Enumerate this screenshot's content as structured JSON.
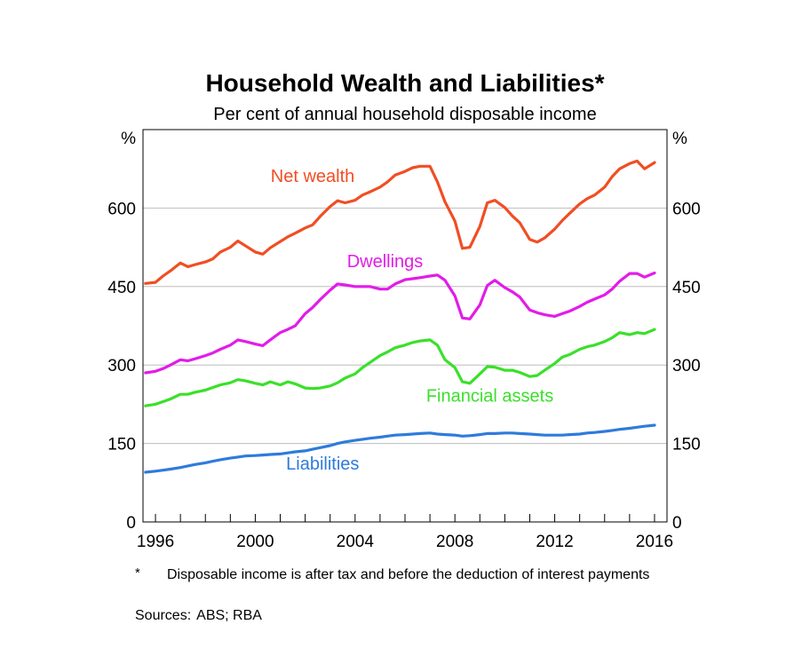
{
  "chart_data": {
    "type": "line",
    "title": "Household Wealth and Liabilities*",
    "subtitle": "Per cent of annual household disposable income",
    "y_unit": "%",
    "ylim": [
      0,
      750
    ],
    "yticks": [
      0,
      150,
      300,
      450,
      600
    ],
    "xlim": [
      1995.5,
      2016.5
    ],
    "xticks": [
      1996,
      2000,
      2004,
      2008,
      2012,
      2016
    ],
    "grid": true,
    "series": [
      {
        "name": "Net wealth",
        "color": "#f04e23",
        "x": [
          1995.6,
          1996.0,
          1996.3,
          1996.6,
          1997.0,
          1997.3,
          1997.6,
          1998.0,
          1998.3,
          1998.6,
          1999.0,
          1999.3,
          1999.6,
          2000.0,
          2000.3,
          2000.6,
          2001.0,
          2001.3,
          2001.6,
          2002.0,
          2002.3,
          2002.6,
          2003.0,
          2003.3,
          2003.6,
          2004.0,
          2004.3,
          2004.6,
          2005.0,
          2005.3,
          2005.6,
          2006.0,
          2006.3,
          2006.6,
          2007.0,
          2007.3,
          2007.6,
          2008.0,
          2008.3,
          2008.6,
          2009.0,
          2009.3,
          2009.6,
          2010.0,
          2010.3,
          2010.6,
          2011.0,
          2011.3,
          2011.6,
          2012.0,
          2012.3,
          2012.6,
          2013.0,
          2013.3,
          2013.6,
          2014.0,
          2014.3,
          2014.6,
          2015.0,
          2015.3,
          2015.6,
          2016.0
        ],
        "values": [
          456,
          458,
          470,
          480,
          495,
          488,
          492,
          497,
          503,
          516,
          525,
          537,
          528,
          516,
          512,
          524,
          536,
          545,
          552,
          562,
          568,
          584,
          603,
          614,
          610,
          615,
          625,
          631,
          640,
          650,
          663,
          670,
          677,
          680,
          680,
          650,
          612,
          575,
          523,
          525,
          565,
          610,
          615,
          601,
          585,
          572,
          540,
          535,
          543,
          560,
          576,
          590,
          608,
          618,
          625,
          640,
          660,
          675,
          685,
          690,
          675,
          687
        ]
      },
      {
        "name": "Dwellings",
        "color": "#e21ce8",
        "x": [
          1995.6,
          1996.0,
          1996.3,
          1996.6,
          1997.0,
          1997.3,
          1997.6,
          1998.0,
          1998.3,
          1998.6,
          1999.0,
          1999.3,
          1999.6,
          2000.0,
          2000.3,
          2000.6,
          2001.0,
          2001.3,
          2001.6,
          2002.0,
          2002.3,
          2002.6,
          2003.0,
          2003.3,
          2003.6,
          2004.0,
          2004.3,
          2004.6,
          2005.0,
          2005.3,
          2005.6,
          2006.0,
          2006.3,
          2006.6,
          2007.0,
          2007.3,
          2007.6,
          2008.0,
          2008.3,
          2008.6,
          2009.0,
          2009.3,
          2009.6,
          2010.0,
          2010.3,
          2010.6,
          2011.0,
          2011.3,
          2011.6,
          2012.0,
          2012.3,
          2012.6,
          2013.0,
          2013.3,
          2013.6,
          2014.0,
          2014.3,
          2014.6,
          2015.0,
          2015.3,
          2015.6,
          2016.0
        ],
        "values": [
          285,
          288,
          293,
          300,
          310,
          308,
          312,
          318,
          323,
          330,
          338,
          348,
          345,
          340,
          337,
          348,
          362,
          368,
          375,
          398,
          410,
          425,
          443,
          455,
          453,
          450,
          450,
          450,
          445,
          445,
          455,
          463,
          465,
          467,
          470,
          472,
          462,
          432,
          390,
          388,
          415,
          452,
          462,
          448,
          440,
          430,
          405,
          400,
          396,
          393,
          398,
          403,
          412,
          420,
          426,
          434,
          445,
          460,
          475,
          475,
          468,
          476
        ]
      },
      {
        "name": "Financial assets",
        "color": "#3ae02a",
        "x": [
          1995.6,
          1996.0,
          1996.3,
          1996.6,
          1997.0,
          1997.3,
          1997.6,
          1998.0,
          1998.3,
          1998.6,
          1999.0,
          1999.3,
          1999.6,
          2000.0,
          2000.3,
          2000.6,
          2001.0,
          2001.3,
          2001.6,
          2002.0,
          2002.3,
          2002.6,
          2003.0,
          2003.3,
          2003.6,
          2004.0,
          2004.3,
          2004.6,
          2005.0,
          2005.3,
          2005.6,
          2006.0,
          2006.3,
          2006.6,
          2007.0,
          2007.3,
          2007.6,
          2008.0,
          2008.3,
          2008.6,
          2009.0,
          2009.3,
          2009.6,
          2010.0,
          2010.3,
          2010.6,
          2011.0,
          2011.3,
          2011.6,
          2012.0,
          2012.3,
          2012.6,
          2013.0,
          2013.3,
          2013.6,
          2014.0,
          2014.3,
          2014.6,
          2015.0,
          2015.3,
          2015.6,
          2016.0
        ],
        "values": [
          222,
          225,
          230,
          235,
          244,
          244,
          248,
          252,
          257,
          262,
          266,
          272,
          270,
          265,
          262,
          268,
          262,
          268,
          264,
          256,
          255,
          256,
          260,
          266,
          275,
          283,
          295,
          305,
          318,
          325,
          333,
          338,
          343,
          346,
          348,
          338,
          310,
          295,
          268,
          265,
          283,
          297,
          296,
          290,
          290,
          286,
          278,
          280,
          290,
          303,
          315,
          320,
          330,
          335,
          338,
          345,
          352,
          362,
          358,
          362,
          360,
          368
        ]
      },
      {
        "name": "Liabilities",
        "color": "#2e7bdc",
        "x": [
          1995.6,
          1996.0,
          1996.3,
          1996.6,
          1997.0,
          1997.3,
          1997.6,
          1998.0,
          1998.3,
          1998.6,
          1999.0,
          1999.3,
          1999.6,
          2000.0,
          2000.3,
          2000.6,
          2001.0,
          2001.3,
          2001.6,
          2002.0,
          2002.3,
          2002.6,
          2003.0,
          2003.3,
          2003.6,
          2004.0,
          2004.3,
          2004.6,
          2005.0,
          2005.3,
          2005.6,
          2006.0,
          2006.3,
          2006.6,
          2007.0,
          2007.3,
          2007.6,
          2008.0,
          2008.3,
          2008.6,
          2009.0,
          2009.3,
          2009.6,
          2010.0,
          2010.3,
          2010.6,
          2011.0,
          2011.3,
          2011.6,
          2012.0,
          2012.3,
          2012.6,
          2013.0,
          2013.3,
          2013.6,
          2014.0,
          2014.3,
          2014.6,
          2015.0,
          2015.3,
          2015.6,
          2016.0
        ],
        "values": [
          95,
          97,
          99,
          101,
          104,
          107,
          110,
          113,
          116,
          119,
          122,
          124,
          126,
          127,
          128,
          129,
          130,
          132,
          134,
          136,
          139,
          142,
          146,
          150,
          153,
          156,
          158,
          160,
          162,
          164,
          166,
          167,
          168,
          169,
          170,
          168,
          167,
          166,
          164,
          165,
          167,
          169,
          169,
          170,
          170,
          169,
          168,
          167,
          166,
          166,
          166,
          167,
          168,
          170,
          171,
          173,
          175,
          177,
          179,
          181,
          183,
          185
        ]
      }
    ],
    "annotations": [
      {
        "text": "Net wealth",
        "series": 0,
        "x": 2002.3,
        "y": 650
      },
      {
        "text": "Dwellings",
        "series": 1,
        "x": 2005.2,
        "y": 487
      },
      {
        "text": "Financial assets",
        "series": 2,
        "x": 2009.4,
        "y": 230
      },
      {
        "text": "Liabilities",
        "series": 3,
        "x": 2002.7,
        "y": 100
      }
    ]
  },
  "footnote": {
    "marker": "*",
    "text": "Disposable income is after tax and before the deduction of interest payments"
  },
  "sources": {
    "label": "Sources:",
    "text": "ABS; RBA"
  }
}
